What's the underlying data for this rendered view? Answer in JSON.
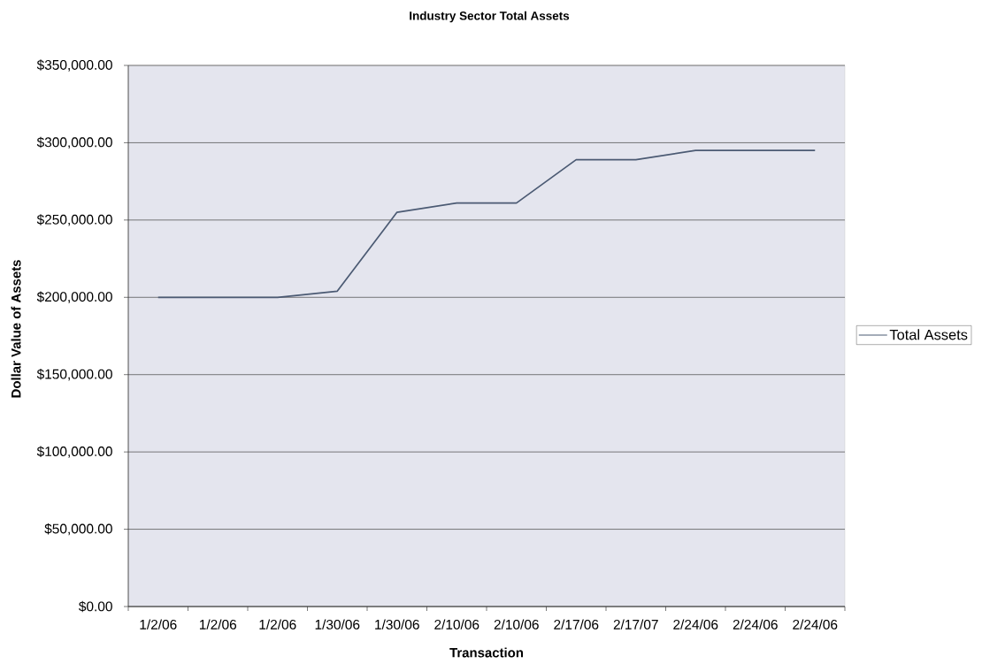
{
  "chart_data": {
    "type": "line",
    "title": "Industry Sector Total Assets",
    "xlabel": "Transaction",
    "ylabel": "Dollar Value of Assets",
    "categories": [
      "1/2/06",
      "1/2/06",
      "1/2/06",
      "1/30/06",
      "1/30/06",
      "2/10/06",
      "2/10/06",
      "2/17/06",
      "2/17/07",
      "2/24/06",
      "2/24/06",
      "2/24/06"
    ],
    "series": [
      {
        "name": "Total Assets",
        "color": "#4b5a73",
        "values": [
          200000,
          200000,
          200000,
          204000,
          255000,
          261000,
          261000,
          289000,
          289000,
          295000,
          295000,
          295000
        ]
      }
    ],
    "ylim": [
      0,
      350000
    ],
    "yticks": [
      {
        "value": 0,
        "label": "$0.00"
      },
      {
        "value": 50000,
        "label": "$50,000.00"
      },
      {
        "value": 100000,
        "label": "$100,000.00"
      },
      {
        "value": 150000,
        "label": "$150,000.00"
      },
      {
        "value": 200000,
        "label": "$200,000.00"
      },
      {
        "value": 250000,
        "label": "$250,000.00"
      },
      {
        "value": 300000,
        "label": "$300,000.00"
      },
      {
        "value": 350000,
        "label": "$350,000.00"
      }
    ],
    "grid": "y",
    "legend": "right"
  }
}
